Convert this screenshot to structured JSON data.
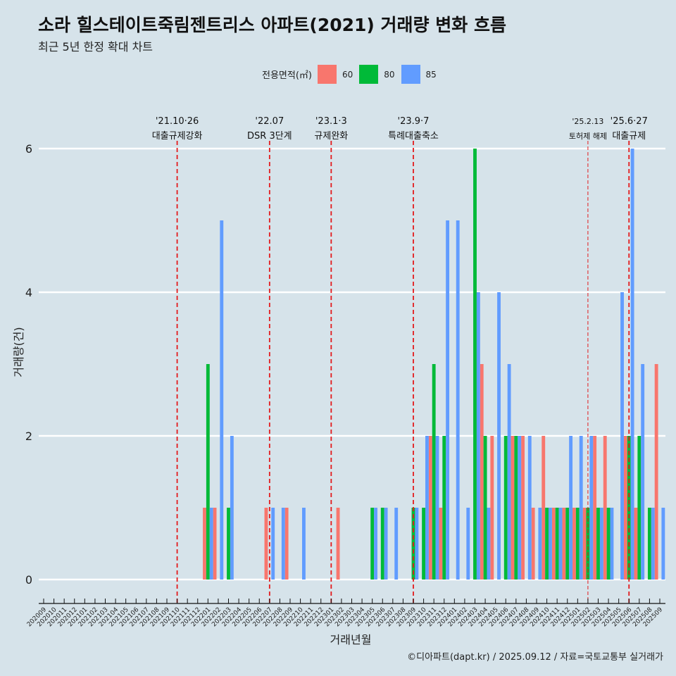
{
  "title": "소라 힐스테이트죽림젠트리스 아파트(2021) 거래량 변화 흐름",
  "subtitle": "최근 5년 한정 확대 차트",
  "caption": "©디아파트(dapt.kr) / 2025.09.12 / 자료=국토교통부 실거래가",
  "legend": {
    "title": "전용면적(㎡)",
    "items": [
      {
        "label": "60",
        "color": "#f8766d"
      },
      {
        "label": "80",
        "color": "#00ba38"
      },
      {
        "label": "85",
        "color": "#619cff"
      }
    ]
  },
  "chart_data": {
    "type": "bar",
    "xlabel": "거래년월",
    "ylabel": "거래량(건)",
    "ylim": [
      0,
      6
    ],
    "yticks": [
      0,
      2,
      4,
      6
    ],
    "grid": true,
    "legend_position": "top",
    "categories": [
      "202009",
      "202010",
      "202011",
      "202012",
      "202101",
      "202102",
      "202103",
      "202104",
      "202105",
      "202106",
      "202107",
      "202108",
      "202109",
      "202110",
      "202111",
      "202112",
      "202201",
      "202202",
      "202203",
      "202204",
      "202205",
      "202206",
      "202207",
      "202208",
      "202209",
      "202210",
      "202211",
      "202212",
      "202301",
      "202302",
      "202303",
      "202304",
      "202305",
      "202306",
      "202307",
      "202308",
      "202309",
      "202310",
      "202311",
      "202312",
      "202401",
      "202402",
      "202403",
      "202404",
      "202405",
      "202406",
      "202407",
      "202408",
      "202409",
      "202410",
      "202411",
      "202412",
      "202501",
      "202502",
      "202503",
      "202504",
      "202505",
      "202506",
      "202507",
      "202508",
      "202509"
    ],
    "series": [
      {
        "name": "60",
        "color": "#f8766d",
        "values": [
          0,
          0,
          0,
          0,
          0,
          0,
          0,
          0,
          0,
          0,
          0,
          0,
          0,
          0,
          0,
          0,
          1,
          1,
          0,
          0,
          0,
          0,
          1,
          0,
          1,
          0,
          0,
          0,
          0,
          1,
          0,
          0,
          0,
          0,
          0,
          0,
          0,
          0,
          2,
          1,
          0,
          0,
          0,
          3,
          2,
          0,
          2,
          2,
          1,
          2,
          1,
          1,
          1,
          1,
          2,
          2,
          0,
          2,
          1,
          0,
          3
        ]
      },
      {
        "name": "80",
        "color": "#00ba38",
        "values": [
          0,
          0,
          0,
          0,
          0,
          0,
          0,
          0,
          0,
          0,
          0,
          0,
          0,
          0,
          0,
          0,
          3,
          0,
          1,
          0,
          0,
          0,
          0,
          0,
          0,
          0,
          0,
          0,
          0,
          0,
          0,
          0,
          1,
          1,
          0,
          0,
          1,
          1,
          3,
          2,
          0,
          0,
          6,
          2,
          0,
          2,
          2,
          0,
          0,
          1,
          1,
          1,
          1,
          1,
          1,
          1,
          0,
          2,
          2,
          1,
          0
        ]
      },
      {
        "name": "85",
        "color": "#619cff",
        "values": [
          0,
          0,
          0,
          0,
          0,
          0,
          0,
          0,
          0,
          0,
          0,
          0,
          0,
          0,
          0,
          0,
          1,
          5,
          2,
          0,
          0,
          0,
          1,
          1,
          0,
          1,
          0,
          0,
          0,
          0,
          0,
          0,
          1,
          1,
          1,
          0,
          1,
          2,
          2,
          5,
          5,
          1,
          4,
          1,
          4,
          3,
          2,
          2,
          1,
          1,
          1,
          2,
          2,
          2,
          1,
          1,
          4,
          6,
          3,
          1,
          1
        ]
      }
    ],
    "events": [
      {
        "date": "202110",
        "label_top": "'21.10·26",
        "label_bottom": "대출규제강화",
        "style": "dashed-major"
      },
      {
        "date": "202207",
        "label_top": "'22.07",
        "label_bottom": "DSR 3단계",
        "style": "dashed-major"
      },
      {
        "date": "202301",
        "label_top": "'23.1·3",
        "label_bottom": "규제완화",
        "style": "dashed-major"
      },
      {
        "date": "202309",
        "label_top": "'23.9·7",
        "label_bottom": "특례대출축소",
        "style": "dashed-major"
      },
      {
        "date": "202502",
        "label_top": "'25.2.13",
        "label_bottom": "토허제 해제",
        "style": "dashed-minor"
      },
      {
        "date": "202506",
        "label_top": "'25.6·27",
        "label_bottom": "대출규제",
        "style": "dashed-major"
      }
    ]
  }
}
